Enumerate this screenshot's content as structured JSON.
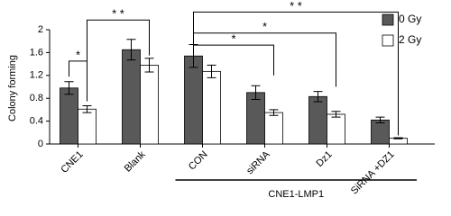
{
  "chart_data": {
    "type": "bar",
    "y_label": "Colony forming",
    "categories": [
      "CNE1",
      "Blank",
      "CON",
      "siRNA",
      "Dz1",
      "SiRNA +DZ1"
    ],
    "series": [
      {
        "name": "0 Gy",
        "color": "#595959",
        "values": [
          0.98,
          1.65,
          1.54,
          0.9,
          0.83,
          0.42
        ],
        "errors": [
          0.11,
          0.18,
          0.2,
          0.12,
          0.09,
          0.05
        ]
      },
      {
        "name": "2 Gy",
        "color": "#ffffff",
        "values": [
          0.61,
          1.38,
          1.27,
          0.55,
          0.52,
          0.1
        ],
        "errors": [
          0.06,
          0.12,
          0.11,
          0.05,
          0.05,
          0.01
        ]
      }
    ],
    "ylim": [
      0,
      2
    ],
    "yticks": [
      0,
      0.4,
      0.8,
      1.2,
      1.6,
      2
    ],
    "significance_labels": [
      "*",
      "* *",
      "* *",
      "*",
      "*"
    ],
    "group_label": "CNE1-LMP1"
  }
}
